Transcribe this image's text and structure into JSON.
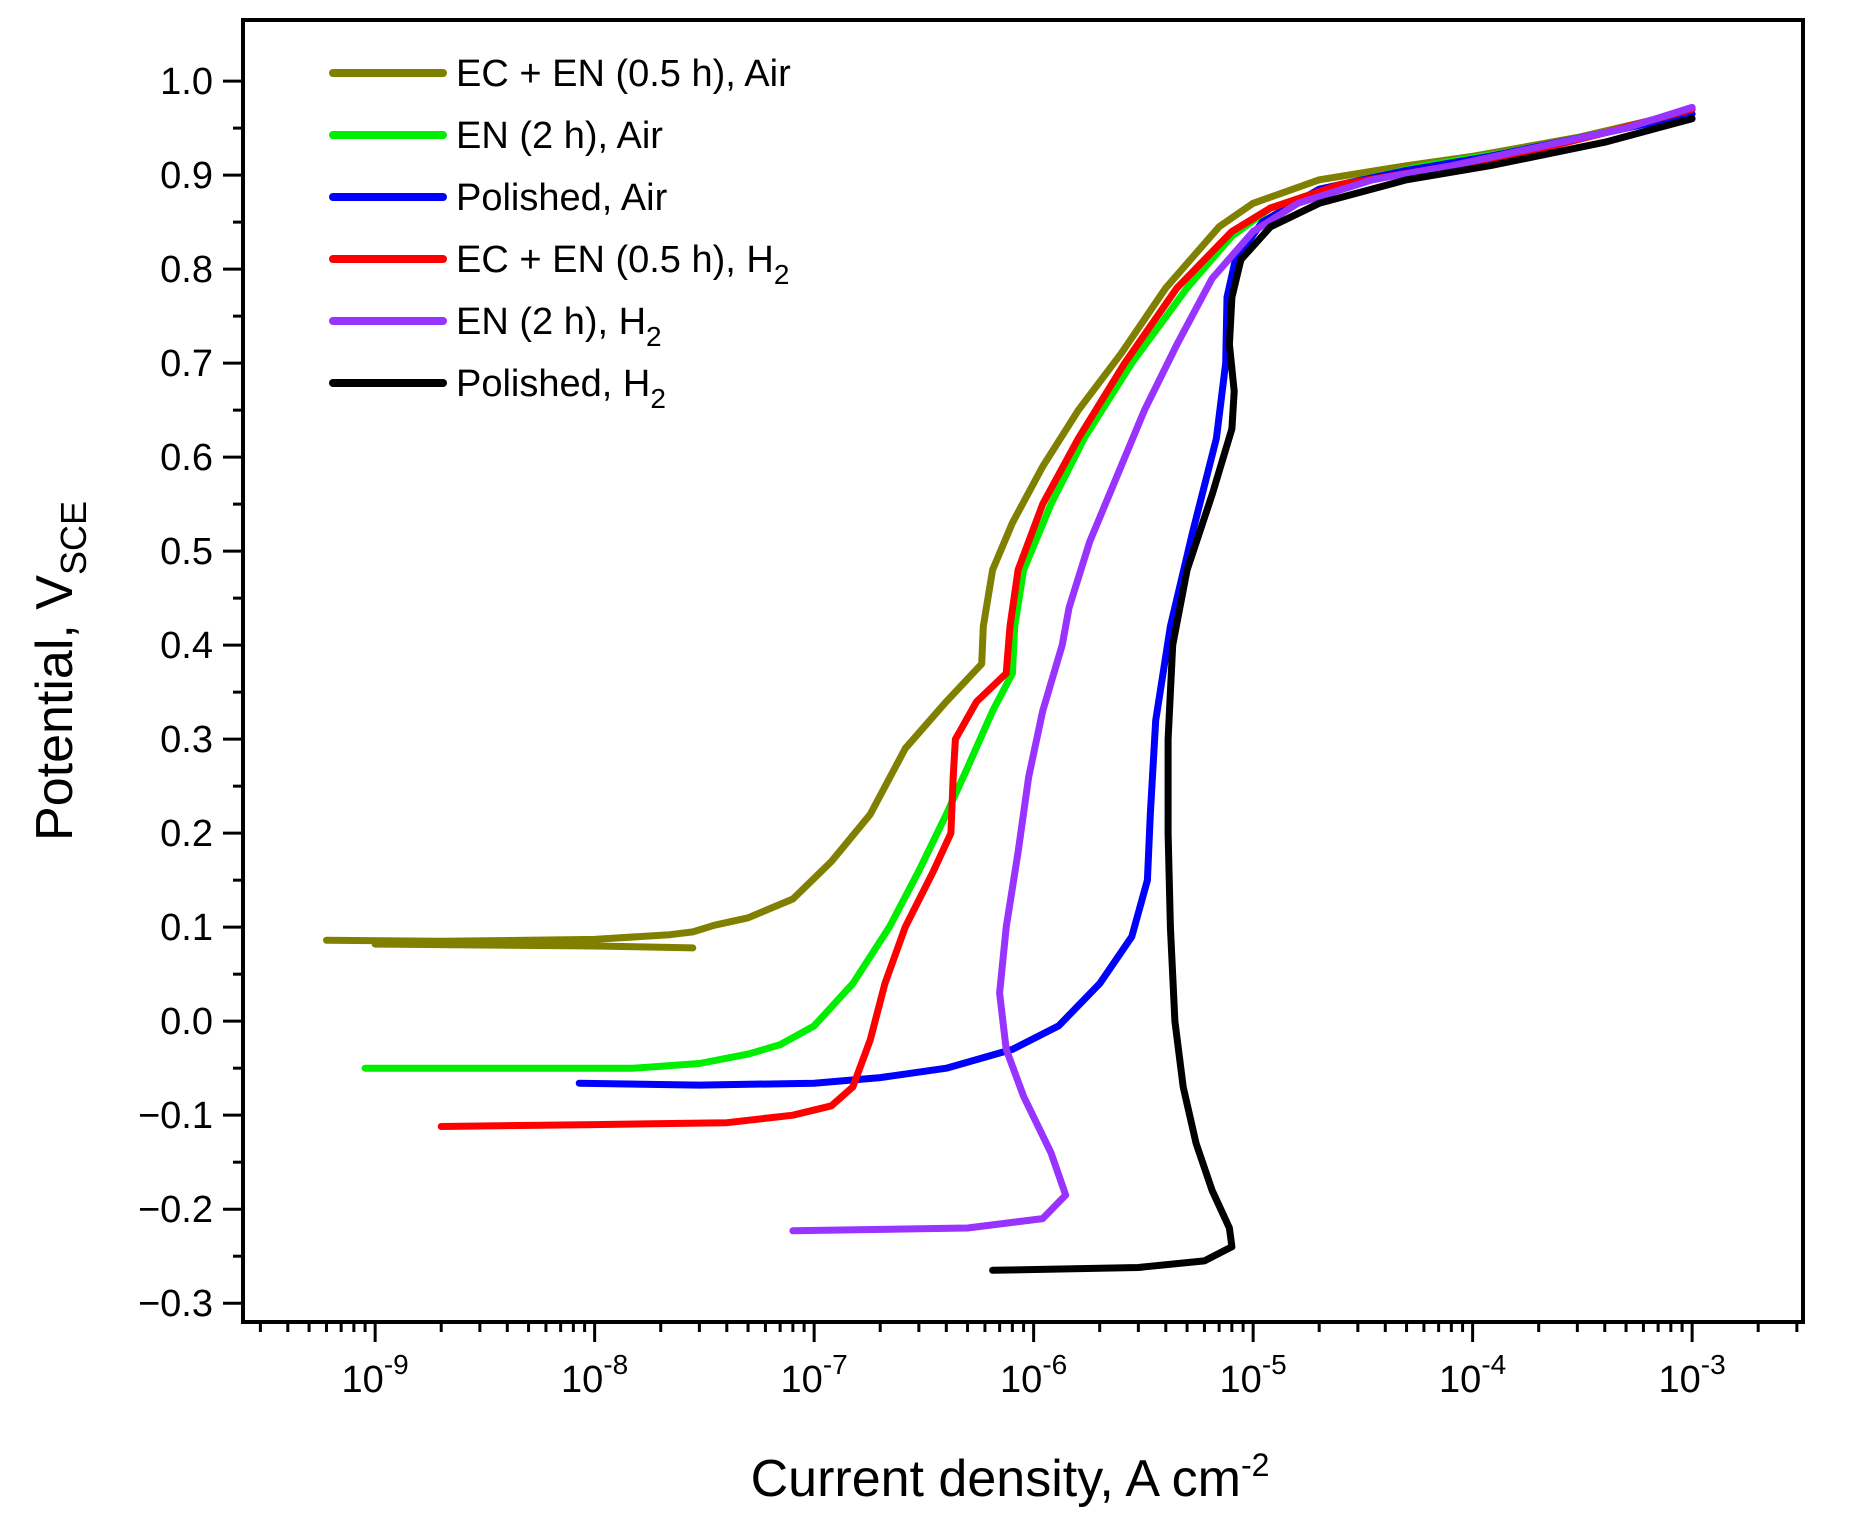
{
  "chart_data": {
    "type": "line",
    "title": "",
    "xlabel": {
      "main": "Current density, A cm",
      "sup": "-2"
    },
    "ylabel": {
      "main": "Potential, V",
      "sub": "SCE"
    },
    "x_scale": "log",
    "xlim": [
      2.5e-10,
      0.0032
    ],
    "ylim": [
      -0.32,
      1.065
    ],
    "x_ticks": [
      {
        "value": 1e-09,
        "base": "10",
        "exp": "-9"
      },
      {
        "value": 1e-08,
        "base": "10",
        "exp": "-8"
      },
      {
        "value": 1e-07,
        "base": "10",
        "exp": "-7"
      },
      {
        "value": 1e-06,
        "base": "10",
        "exp": "-6"
      },
      {
        "value": 1e-05,
        "base": "10",
        "exp": "-5"
      },
      {
        "value": 0.0001,
        "base": "10",
        "exp": "-4"
      },
      {
        "value": 0.001,
        "base": "10",
        "exp": "-3"
      }
    ],
    "y_ticks": [
      {
        "value": 1.0,
        "label": "1.0"
      },
      {
        "value": 0.9,
        "label": "0.9"
      },
      {
        "value": 0.8,
        "label": "0.8"
      },
      {
        "value": 0.7,
        "label": "0.7"
      },
      {
        "value": 0.6,
        "label": "0.6"
      },
      {
        "value": 0.5,
        "label": "0.5"
      },
      {
        "value": 0.4,
        "label": "0.4"
      },
      {
        "value": 0.3,
        "label": "0.3"
      },
      {
        "value": 0.2,
        "label": "0.2"
      },
      {
        "value": 0.1,
        "label": "0.1"
      },
      {
        "value": 0.0,
        "label": "0.0"
      },
      {
        "value": -0.1,
        "label": "−0.1"
      },
      {
        "value": -0.2,
        "label": "−0.2"
      },
      {
        "value": -0.3,
        "label": "−0.3"
      }
    ],
    "legend_position": "top-left",
    "series": [
      {
        "name": "EC + EN (0.5 h), Air",
        "label_main": "EC + EN (0.5 h), Air",
        "label_sub": "",
        "color": "#808000",
        "points": [
          [
            6e-10,
            0.086
          ],
          [
            2e-09,
            0.085
          ],
          [
            1e-08,
            0.087
          ],
          [
            2.2e-08,
            0.092
          ],
          [
            2.8e-08,
            0.095
          ],
          [
            3.5e-08,
            0.102
          ],
          [
            5e-08,
            0.11
          ],
          [
            8e-08,
            0.13
          ],
          [
            1.2e-07,
            0.17
          ],
          [
            1.8e-07,
            0.22
          ],
          [
            2.6e-07,
            0.29
          ],
          [
            4e-07,
            0.34
          ],
          [
            5.8e-07,
            0.38
          ],
          [
            5.9e-07,
            0.42
          ],
          [
            6.5e-07,
            0.48
          ],
          [
            8e-07,
            0.53
          ],
          [
            1.1e-06,
            0.59
          ],
          [
            1.6e-06,
            0.65
          ],
          [
            2.5e-06,
            0.71
          ],
          [
            4e-06,
            0.78
          ],
          [
            7e-06,
            0.845
          ],
          [
            1e-05,
            0.87
          ],
          [
            2e-05,
            0.895
          ],
          [
            5e-05,
            0.91
          ],
          [
            0.0001,
            0.92
          ],
          [
            0.0003,
            0.94
          ],
          [
            0.0007,
            0.96
          ],
          [
            0.001,
            0.97
          ]
        ],
        "branch": [
          [
            1e-09,
            0.082
          ],
          [
            1e-08,
            0.08
          ],
          [
            2.8e-08,
            0.078
          ]
        ]
      },
      {
        "name": "EN (2 h), Air",
        "label_main": "EN (2 h), Air",
        "label_sub": "",
        "color": "#00ee00",
        "points": [
          [
            9e-10,
            -0.05
          ],
          [
            5e-09,
            -0.05
          ],
          [
            1.5e-08,
            -0.05
          ],
          [
            3e-08,
            -0.045
          ],
          [
            5e-08,
            -0.035
          ],
          [
            7e-08,
            -0.025
          ],
          [
            1e-07,
            -0.005
          ],
          [
            1.5e-07,
            0.04
          ],
          [
            2.2e-07,
            0.1
          ],
          [
            3e-07,
            0.16
          ],
          [
            4e-07,
            0.22
          ],
          [
            5e-07,
            0.27
          ],
          [
            6.5e-07,
            0.33
          ],
          [
            8e-07,
            0.37
          ],
          [
            8.2e-07,
            0.42
          ],
          [
            9e-07,
            0.48
          ],
          [
            1.2e-06,
            0.55
          ],
          [
            1.7e-06,
            0.62
          ],
          [
            2.8e-06,
            0.7
          ],
          [
            5e-06,
            0.78
          ],
          [
            8e-06,
            0.835
          ],
          [
            1.2e-05,
            0.865
          ],
          [
            2.5e-05,
            0.89
          ],
          [
            6e-05,
            0.91
          ],
          [
            0.00015,
            0.925
          ],
          [
            0.0004,
            0.945
          ],
          [
            0.001,
            0.97
          ]
        ]
      },
      {
        "name": "Polished, Air",
        "label_main": "Polished, Air",
        "label_sub": "",
        "color": "#0000ff",
        "points": [
          [
            8.5e-09,
            -0.066
          ],
          [
            3e-08,
            -0.068
          ],
          [
            1e-07,
            -0.066
          ],
          [
            2e-07,
            -0.06
          ],
          [
            4e-07,
            -0.05
          ],
          [
            8e-07,
            -0.03
          ],
          [
            1.3e-06,
            -0.005
          ],
          [
            2e-06,
            0.04
          ],
          [
            2.8e-06,
            0.09
          ],
          [
            3.3e-06,
            0.15
          ],
          [
            3.4e-06,
            0.22
          ],
          [
            3.6e-06,
            0.32
          ],
          [
            4.2e-06,
            0.42
          ],
          [
            5.3e-06,
            0.52
          ],
          [
            6.8e-06,
            0.62
          ],
          [
            7.5e-06,
            0.7
          ],
          [
            7.6e-06,
            0.77
          ],
          [
            8.3e-06,
            0.81
          ],
          [
            1.1e-05,
            0.85
          ],
          [
            2e-05,
            0.885
          ],
          [
            5e-05,
            0.905
          ],
          [
            0.00012,
            0.92
          ],
          [
            0.0004,
            0.945
          ],
          [
            0.001,
            0.965
          ]
        ]
      },
      {
        "name": "EC + EN (0.5 h), H2",
        "label_main": "EC + EN (0.5 h), H",
        "label_sub": "2",
        "color": "#ff0000",
        "points": [
          [
            2e-09,
            -0.112
          ],
          [
            1e-08,
            -0.11
          ],
          [
            4e-08,
            -0.108
          ],
          [
            8e-08,
            -0.1
          ],
          [
            1.2e-07,
            -0.09
          ],
          [
            1.5e-07,
            -0.07
          ],
          [
            1.8e-07,
            -0.02
          ],
          [
            2.1e-07,
            0.04
          ],
          [
            2.6e-07,
            0.1
          ],
          [
            3.5e-07,
            0.16
          ],
          [
            4.2e-07,
            0.2
          ],
          [
            4.3e-07,
            0.26
          ],
          [
            4.4e-07,
            0.3
          ],
          [
            5.5e-07,
            0.34
          ],
          [
            7.5e-07,
            0.37
          ],
          [
            7.8e-07,
            0.42
          ],
          [
            8.5e-07,
            0.48
          ],
          [
            1.1e-06,
            0.55
          ],
          [
            1.6e-06,
            0.62
          ],
          [
            2.6e-06,
            0.7
          ],
          [
            4.5e-06,
            0.78
          ],
          [
            8e-06,
            0.84
          ],
          [
            1.2e-05,
            0.865
          ],
          [
            2.5e-05,
            0.89
          ],
          [
            6e-05,
            0.905
          ],
          [
            0.00015,
            0.92
          ],
          [
            0.0004,
            0.945
          ],
          [
            0.001,
            0.97
          ]
        ]
      },
      {
        "name": "EN (2 h), H2",
        "label_main": "EN (2 h), H",
        "label_sub": "2",
        "color": "#9933ff",
        "points": [
          [
            8e-08,
            -0.223
          ],
          [
            5e-07,
            -0.22
          ],
          [
            1.1e-06,
            -0.21
          ],
          [
            1.4e-06,
            -0.185
          ],
          [
            1.2e-06,
            -0.14
          ],
          [
            9e-07,
            -0.08
          ],
          [
            7.5e-07,
            -0.03
          ],
          [
            7e-07,
            0.03
          ],
          [
            7.5e-07,
            0.1
          ],
          [
            8.5e-07,
            0.18
          ],
          [
            9.5e-07,
            0.26
          ],
          [
            1.1e-06,
            0.33
          ],
          [
            1.35e-06,
            0.4
          ],
          [
            1.45e-06,
            0.44
          ],
          [
            1.8e-06,
            0.51
          ],
          [
            2.4e-06,
            0.58
          ],
          [
            3.2e-06,
            0.65
          ],
          [
            4.5e-06,
            0.72
          ],
          [
            6.5e-06,
            0.79
          ],
          [
            1e-05,
            0.84
          ],
          [
            1.6e-05,
            0.87
          ],
          [
            3.5e-05,
            0.895
          ],
          [
            8e-05,
            0.91
          ],
          [
            0.0002,
            0.93
          ],
          [
            0.0005,
            0.95
          ],
          [
            0.001,
            0.972
          ]
        ]
      },
      {
        "name": "Polished, H2",
        "label_main": "Polished, H",
        "label_sub": "2",
        "color": "#000000",
        "points": [
          [
            6.5e-07,
            -0.265
          ],
          [
            3e-06,
            -0.262
          ],
          [
            6e-06,
            -0.255
          ],
          [
            8e-06,
            -0.24
          ],
          [
            7.8e-06,
            -0.22
          ],
          [
            6.5e-06,
            -0.18
          ],
          [
            5.5e-06,
            -0.13
          ],
          [
            4.8e-06,
            -0.07
          ],
          [
            4.4e-06,
            0.0
          ],
          [
            4.2e-06,
            0.1
          ],
          [
            4.1e-06,
            0.2
          ],
          [
            4.1e-06,
            0.3
          ],
          [
            4.3e-06,
            0.4
          ],
          [
            5e-06,
            0.48
          ],
          [
            6.5e-06,
            0.56
          ],
          [
            8e-06,
            0.63
          ],
          [
            8.2e-06,
            0.67
          ],
          [
            7.8e-06,
            0.72
          ],
          [
            8e-06,
            0.77
          ],
          [
            8.8e-06,
            0.81
          ],
          [
            1.2e-05,
            0.845
          ],
          [
            2e-05,
            0.87
          ],
          [
            5e-05,
            0.895
          ],
          [
            0.00012,
            0.91
          ],
          [
            0.0004,
            0.935
          ],
          [
            0.001,
            0.96
          ]
        ]
      }
    ]
  }
}
